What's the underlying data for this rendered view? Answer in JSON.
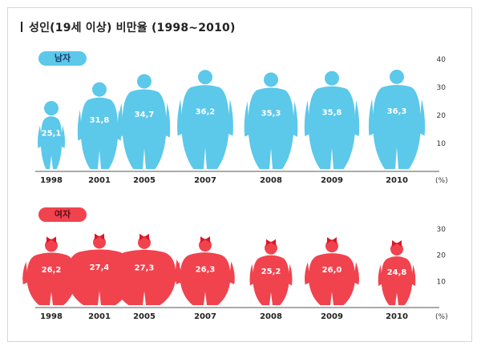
{
  "title": "성인(19세 이상) 비만율 (1998~2010)",
  "chart_data": [
    {
      "type": "bar",
      "label": "남자",
      "categories": [
        "1998",
        "2001",
        "2005",
        "2007",
        "2008",
        "2009",
        "2010"
      ],
      "values": [
        25.1,
        31.8,
        34.7,
        36.2,
        35.3,
        35.8,
        36.3
      ],
      "value_labels": [
        "25,1",
        "31,8",
        "34,7",
        "36,2",
        "35,3",
        "35,8",
        "36,3"
      ],
      "ylim": [
        0,
        40
      ],
      "yticks": [
        "10",
        "20",
        "30",
        "40"
      ],
      "unit": "(%)",
      "color": "#5cc8ea"
    },
    {
      "type": "bar",
      "label": "여자",
      "categories": [
        "1998",
        "2001",
        "2005",
        "2007",
        "2008",
        "2009",
        "2010"
      ],
      "values": [
        26.2,
        27.4,
        27.3,
        26.3,
        25.2,
        26.0,
        24.8
      ],
      "value_labels": [
        "26,2",
        "27,4",
        "27,3",
        "26,3",
        "25,2",
        "26,0",
        "24,8"
      ],
      "ylim": [
        0,
        30
      ],
      "yticks": [
        "10",
        "20",
        "30"
      ],
      "unit": "(%)",
      "color": "#f0434e"
    }
  ]
}
